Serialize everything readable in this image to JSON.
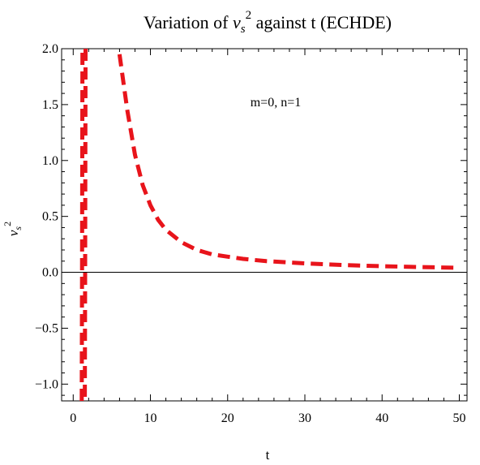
{
  "chart_data": {
    "type": "line",
    "title": {
      "prefix": "Variation of ",
      "var": "v",
      "sub": "s",
      "sup": "2",
      "suffix": " against t (ECHDE)"
    },
    "xlabel": "t",
    "ylabel": {
      "var": "v",
      "sub": "s",
      "sup": "2"
    },
    "xlim": [
      -1.5,
      51
    ],
    "ylim": [
      -1.15,
      2.0
    ],
    "x_ticks": [
      {
        "value": 0,
        "label": "0"
      },
      {
        "value": 10,
        "label": "10"
      },
      {
        "value": 20,
        "label": "20"
      },
      {
        "value": 30,
        "label": "30"
      },
      {
        "value": 40,
        "label": "40"
      },
      {
        "value": 50,
        "label": "50"
      }
    ],
    "y_ticks": [
      {
        "value": -1.0,
        "label": "−1.0"
      },
      {
        "value": -0.5,
        "label": "−0.5"
      },
      {
        "value": 0.0,
        "label": "0.0"
      },
      {
        "value": 0.5,
        "label": "0.5"
      },
      {
        "value": 1.0,
        "label": "1.0"
      },
      {
        "value": 1.5,
        "label": "1.5"
      },
      {
        "value": 2.0,
        "label": "2.0"
      }
    ],
    "reference_line_y": 0,
    "annotation": "m=0,  n=1",
    "grid": false,
    "legend": "none",
    "series": [
      {
        "color": "#e8141b",
        "style": "dashed",
        "segments": [
          [
            [
              1.1,
              -1.15
            ],
            [
              1.15,
              0.0
            ],
            [
              1.2,
              2.0
            ]
          ],
          [
            [
              1.6,
              2.0
            ],
            [
              1.55,
              0.0
            ],
            [
              1.5,
              -1.15
            ]
          ],
          [
            [
              6.0,
              1.95
            ],
            [
              7.0,
              1.45
            ],
            [
              8.0,
              1.05
            ],
            [
              9.0,
              0.78
            ],
            [
              10.0,
              0.6
            ],
            [
              11.0,
              0.47
            ],
            [
              12.0,
              0.38
            ],
            [
              14.0,
              0.27
            ],
            [
              16.0,
              0.2
            ],
            [
              18.0,
              0.16
            ],
            [
              20.0,
              0.14
            ],
            [
              22.0,
              0.12
            ],
            [
              25.0,
              0.1
            ],
            [
              30.0,
              0.08
            ],
            [
              35.0,
              0.065
            ],
            [
              40.0,
              0.055
            ],
            [
              45.0,
              0.047
            ],
            [
              50.0,
              0.04
            ]
          ]
        ]
      }
    ]
  }
}
